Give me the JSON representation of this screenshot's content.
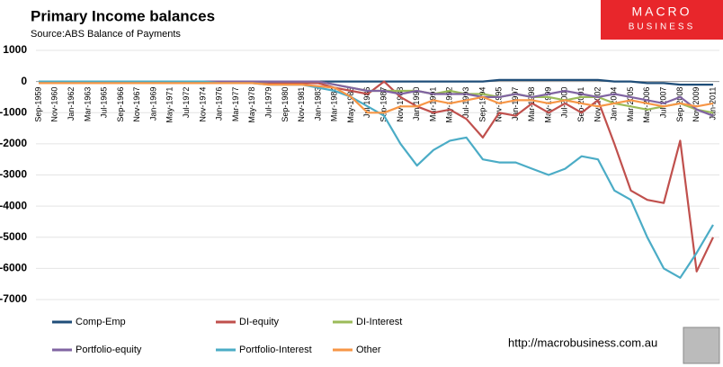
{
  "chart_data": {
    "type": "line",
    "title": "Primary Income balances",
    "subtitle": "Source:ABS Balance of Payments",
    "branding": {
      "logo_top": "MACRO",
      "logo_bottom": "BUSINESS",
      "url": "http://macrobusiness.com.au"
    },
    "categories": [
      "Sep-1959",
      "Nov-1960",
      "Jan-1962",
      "Mar-1963",
      "Jul-1965",
      "Sep-1966",
      "Nov-1967",
      "Jan-1969",
      "May-1971",
      "Jul-1972",
      "Nov-1974",
      "Jan-1976",
      "Mar-1977",
      "May-1978",
      "Jul-1979",
      "Sep-1980",
      "Nov-1981",
      "Jan-1983",
      "Mar-1984",
      "May-1985",
      "Jul-1986",
      "Sep-1987",
      "Nov-1988",
      "Jan-1990",
      "Mar-1991",
      "May-1992",
      "Jul-1993",
      "Sep-1994",
      "Nov-1995",
      "Jan-1997",
      "Mar-1998",
      "May-1999",
      "Jul-2000",
      "Sep-2001",
      "Nov-2002",
      "Jan-2004",
      "Mar-2005",
      "May-2006",
      "Jul-2007",
      "Sep-2008",
      "Nov-2009",
      "Jan-2011"
    ],
    "series": [
      {
        "name": "Comp-Emp",
        "color": "#1f4e79",
        "values": [
          0,
          0,
          0,
          0,
          0,
          0,
          0,
          0,
          0,
          0,
          0,
          0,
          0,
          0,
          0,
          0,
          0,
          0,
          0,
          0,
          0,
          0,
          0,
          0,
          0,
          0,
          0,
          0,
          50,
          50,
          50,
          50,
          50,
          50,
          50,
          0,
          0,
          -50,
          -50,
          -100,
          -100,
          -100
        ]
      },
      {
        "name": "DI-equity",
        "color": "#c0504d",
        "values": [
          -50,
          -50,
          -50,
          -50,
          -50,
          -50,
          -50,
          -50,
          -50,
          -50,
          -50,
          -50,
          -50,
          -50,
          -50,
          -50,
          -50,
          -50,
          -200,
          -300,
          -400,
          0,
          -500,
          -800,
          -1000,
          -900,
          -1200,
          -1800,
          -1000,
          -1100,
          -700,
          -1000,
          -700,
          -1000,
          -600,
          -2000,
          -3500,
          -3800,
          -3900,
          -1900,
          -6100,
          -5000
        ]
      },
      {
        "name": "DI-Interest",
        "color": "#9bbb59",
        "values": [
          0,
          0,
          0,
          0,
          0,
          0,
          0,
          0,
          0,
          0,
          0,
          0,
          0,
          0,
          0,
          0,
          0,
          0,
          -100,
          -200,
          -300,
          -300,
          -300,
          -300,
          -400,
          -300,
          -400,
          -400,
          -500,
          -400,
          -500,
          -500,
          -600,
          -500,
          -500,
          -700,
          -800,
          -900,
          -800,
          -700,
          -900,
          -1000
        ]
      },
      {
        "name": "Portfolio-equity",
        "color": "#8064a2",
        "values": [
          0,
          0,
          0,
          0,
          0,
          0,
          0,
          0,
          0,
          0,
          0,
          0,
          0,
          0,
          0,
          0,
          0,
          0,
          -100,
          -200,
          -300,
          -300,
          -400,
          -300,
          -400,
          -400,
          -400,
          -500,
          -500,
          -400,
          -500,
          -400,
          -300,
          -400,
          -500,
          -400,
          -500,
          -600,
          -700,
          -500,
          -900,
          -1100
        ]
      },
      {
        "name": "Portfolio-Interest",
        "color": "#4bacc6",
        "values": [
          0,
          0,
          0,
          0,
          0,
          0,
          0,
          0,
          0,
          0,
          0,
          -50,
          -50,
          -50,
          -100,
          -100,
          -100,
          -200,
          -300,
          -500,
          -800,
          -1100,
          -2000,
          -2700,
          -2200,
          -1900,
          -1800,
          -2500,
          -2600,
          -2600,
          -2800,
          -3000,
          -2800,
          -2400,
          -2500,
          -3500,
          -3800,
          -5000,
          -6000,
          -6300,
          -5500,
          -4600
        ]
      },
      {
        "name": "Other",
        "color": "#f79646",
        "values": [
          -50,
          -50,
          -50,
          -50,
          -50,
          -50,
          -50,
          -50,
          -50,
          -50,
          -50,
          -50,
          -50,
          -50,
          -100,
          -100,
          -100,
          -150,
          -200,
          -500,
          -1000,
          -1000,
          -800,
          -800,
          -600,
          -700,
          -600,
          -500,
          -700,
          -600,
          -600,
          -700,
          -600,
          -700,
          -800,
          -700,
          -600,
          -700,
          -800,
          -700,
          -800,
          -700
        ]
      }
    ],
    "ylim": [
      -7000,
      1000
    ],
    "yticks": [
      1000,
      0,
      -1000,
      -2000,
      -3000,
      -4000,
      -5000,
      -6000,
      -7000
    ],
    "grid": true,
    "legend": "bottom"
  }
}
